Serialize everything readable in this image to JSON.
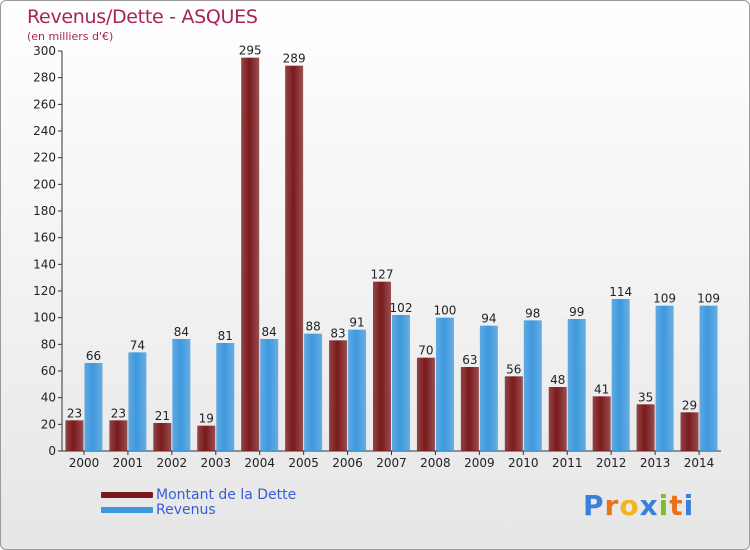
{
  "chart_data": {
    "type": "bar",
    "title": "Revenus/Dette - ASQUES",
    "subtitle": "(en milliers d'€)",
    "categories": [
      "2000",
      "2001",
      "2002",
      "2003",
      "2004",
      "2005",
      "2006",
      "2007",
      "2008",
      "2009",
      "2010",
      "2011",
      "2012",
      "2013",
      "2014"
    ],
    "series": [
      {
        "name": "Montant de la Dette",
        "color": "#7a1a1c",
        "values": [
          23,
          23,
          21,
          19,
          295,
          289,
          83,
          127,
          70,
          63,
          56,
          48,
          41,
          35,
          29
        ]
      },
      {
        "name": "Revenus",
        "color": "#3d98de",
        "values": [
          66,
          74,
          84,
          81,
          84,
          88,
          91,
          102,
          100,
          94,
          98,
          99,
          114,
          109,
          109
        ]
      }
    ],
    "ylim": [
      0,
      300
    ],
    "yticks": [
      0,
      20,
      40,
      60,
      80,
      100,
      120,
      140,
      160,
      180,
      200,
      220,
      240,
      260,
      280,
      300
    ],
    "grid": false,
    "legend_position": "bottom-left"
  },
  "branding": {
    "logo_letters": [
      "P",
      "r",
      "o",
      "x",
      "i",
      "t",
      "i"
    ],
    "logo_colors": [
      "#3a7fd9",
      "#e8731c",
      "#f2b51e",
      "#3a7fd9",
      "#7fbf26",
      "#e8731c",
      "#3a7fd9"
    ]
  }
}
